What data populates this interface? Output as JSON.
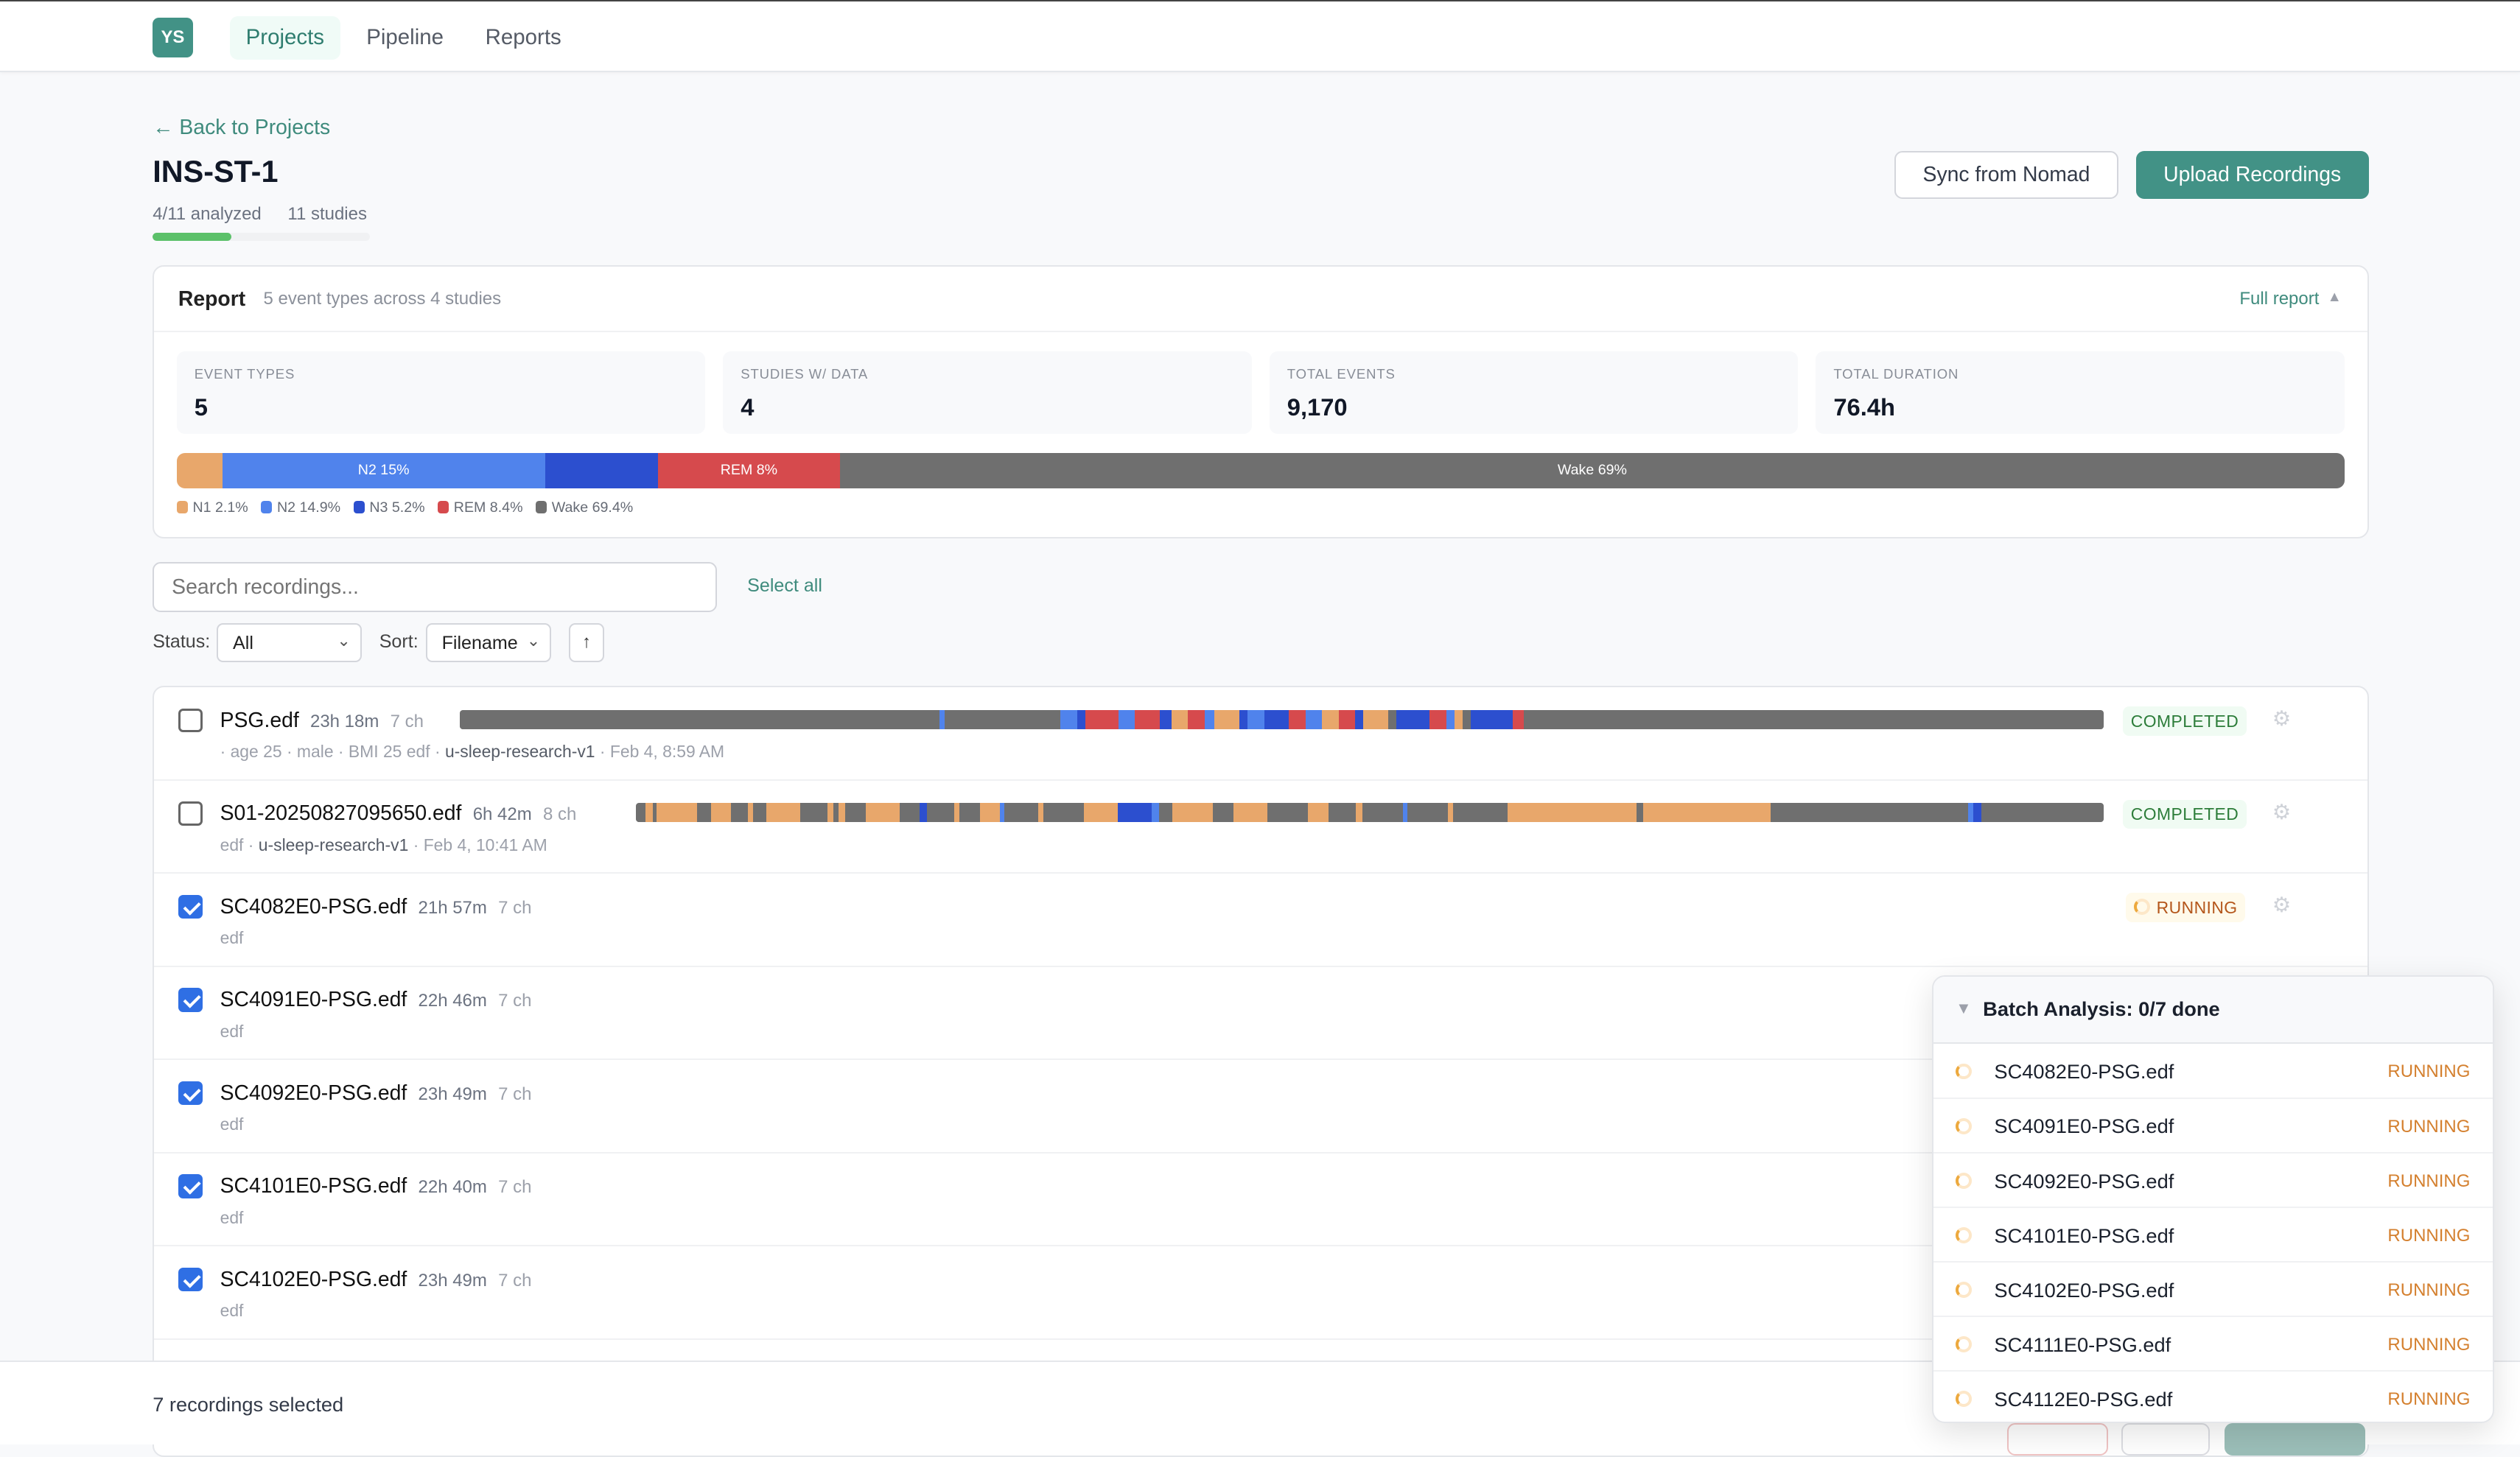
{
  "nav": {
    "logo": "YS",
    "items": [
      {
        "label": "Projects",
        "active": true
      },
      {
        "label": "Pipeline"
      },
      {
        "label": "Reports"
      }
    ]
  },
  "header": {
    "back": "← Back to Projects",
    "title": "INS-ST-1",
    "analyzed": "4/11 analyzed",
    "studies": "11 studies",
    "progress_fraction": 0.364,
    "sync_label": "Sync from Nomad",
    "upload_label": "Upload Recordings"
  },
  "colors": {
    "accent": "#429286",
    "N1": "#e8a76b",
    "N2": "#5083ec",
    "N3": "#2c4fcf",
    "REM": "#d64a4d",
    "Wake": "#6f6f6f"
  },
  "report": {
    "title": "Report",
    "subtitle": "5 event types across 4 studies",
    "full_report": "Full report",
    "stats": [
      {
        "label": "EVENT TYPES",
        "value": "5"
      },
      {
        "label": "STUDIES W/ DATA",
        "value": "4"
      },
      {
        "label": "TOTAL EVENTS",
        "value": "9,170"
      },
      {
        "label": "TOTAL DURATION",
        "value": "76.4h"
      }
    ],
    "stages": [
      {
        "name": "N1",
        "pct": 2.1,
        "bar_label": "",
        "legend": "N1 2.1%"
      },
      {
        "name": "N2",
        "pct": 14.9,
        "bar_label": "N2 15%",
        "legend": "N2 14.9%"
      },
      {
        "name": "N3",
        "pct": 5.2,
        "bar_label": "",
        "legend": "N3 5.2%"
      },
      {
        "name": "REM",
        "pct": 8.4,
        "bar_label": "REM 8%",
        "legend": "REM 8.4%"
      },
      {
        "name": "Wake",
        "pct": 69.4,
        "bar_label": "Wake 69%",
        "legend": "Wake 69.4%"
      }
    ]
  },
  "filters": {
    "search_placeholder": "Search recordings...",
    "select_all": "Select all",
    "status_label": "Status:",
    "status_value": "All",
    "sort_label": "Sort:",
    "sort_value": "Filename",
    "sort_dir": "↑"
  },
  "recordings": [
    {
      "name": "PSG.edf",
      "duration": "23h 18m",
      "channels": "7 ch",
      "checked": false,
      "status": "COMPLETED",
      "sub": [
        [
          "· age 25 · male · BMI 25  edf ·",
          false
        ],
        [
          "u-sleep-research-v1",
          true
        ],
        [
          "· Feb 4, 8:59 AM",
          false
        ]
      ],
      "hypnogram": [
        [
          "Wake",
          29
        ],
        [
          "N2",
          0.3
        ],
        [
          "Wake",
          7
        ],
        [
          "N2",
          1
        ],
        [
          "N3",
          0.5
        ],
        [
          "REM",
          2
        ],
        [
          "N2",
          1
        ],
        [
          "REM",
          1.5
        ],
        [
          "N3",
          0.7
        ],
        [
          "N1",
          1
        ],
        [
          "REM",
          1
        ],
        [
          "N2",
          0.6
        ],
        [
          "N1",
          1.5
        ],
        [
          "N3",
          0.5
        ],
        [
          "N2",
          1
        ],
        [
          "N3",
          1.5
        ],
        [
          "REM",
          1
        ],
        [
          "N2",
          1
        ],
        [
          "N1",
          1
        ],
        [
          "REM",
          1
        ],
        [
          "N3",
          0.5
        ],
        [
          "N1",
          1.5
        ],
        [
          "Wake",
          0.5
        ],
        [
          "N3",
          2
        ],
        [
          "REM",
          1
        ],
        [
          "N2",
          0.5
        ],
        [
          "N1",
          0.5
        ],
        [
          "Wake",
          0.5
        ],
        [
          "N3",
          2.5
        ],
        [
          "REM",
          0.7
        ],
        [
          "Wake",
          35
        ]
      ]
    },
    {
      "name": "S01-20250827095650.edf",
      "duration": "6h 42m",
      "channels": "8 ch",
      "checked": false,
      "status": "COMPLETED",
      "sub": [
        [
          "edf ·",
          false
        ],
        [
          "u-sleep-research-v1",
          true
        ],
        [
          "· Feb 4, 10:41 AM",
          false
        ]
      ],
      "hypnogram": [
        [
          "Wake",
          0.7
        ],
        [
          "N1",
          0.5
        ],
        [
          "Wake",
          0.3
        ],
        [
          "N1",
          3
        ],
        [
          "Wake",
          1
        ],
        [
          "N1",
          1.5
        ],
        [
          "Wake",
          1.2
        ],
        [
          "N1",
          0.4
        ],
        [
          "Wake",
          1
        ],
        [
          "N1",
          2.5
        ],
        [
          "Wake",
          2
        ],
        [
          "N1",
          0.4
        ],
        [
          "Wake",
          0.4
        ],
        [
          "N1",
          0.5
        ],
        [
          "Wake",
          1.5
        ],
        [
          "N1",
          2.5
        ],
        [
          "Wake",
          1.5
        ],
        [
          "N3",
          0.5
        ],
        [
          "Wake",
          2
        ],
        [
          "N1",
          0.4
        ],
        [
          "Wake",
          1.5
        ],
        [
          "N1",
          1.5
        ],
        [
          "N2",
          0.3
        ],
        [
          "Wake",
          2.5
        ],
        [
          "N1",
          0.4
        ],
        [
          "Wake",
          3
        ],
        [
          "N1",
          2.5
        ],
        [
          "N3",
          2.5
        ],
        [
          "N2",
          0.5
        ],
        [
          "Wake",
          1
        ],
        [
          "N1",
          3
        ],
        [
          "Wake",
          1.5
        ],
        [
          "N1",
          2.5
        ],
        [
          "Wake",
          3
        ],
        [
          "N1",
          1.5
        ],
        [
          "Wake",
          2
        ],
        [
          "N1",
          0.5
        ],
        [
          "Wake",
          3
        ],
        [
          "N2",
          0.3
        ],
        [
          "Wake",
          3
        ],
        [
          "N1",
          0.4
        ],
        [
          "Wake",
          4
        ],
        [
          "N1",
          9.5
        ],
        [
          "Wake",
          0.5
        ],
        [
          "N1",
          0.4
        ],
        [
          "N1",
          9
        ],
        [
          "Wake",
          0.5
        ],
        [
          "Wake",
          9
        ],
        [
          "Wake",
          5
        ],
        [
          "N2",
          0.4
        ],
        [
          "N3",
          0.6
        ],
        [
          "Wake",
          9
        ]
      ]
    },
    {
      "name": "SC4082E0-PSG.edf",
      "duration": "21h 57m",
      "channels": "7 ch",
      "checked": true,
      "status": "RUNNING",
      "sub": [
        [
          "edf",
          false
        ]
      ]
    },
    {
      "name": "SC4091E0-PSG.edf",
      "duration": "22h 46m",
      "channels": "7 ch",
      "checked": true,
      "sub": [
        [
          "edf",
          false
        ]
      ]
    },
    {
      "name": "SC4092E0-PSG.edf",
      "duration": "23h 49m",
      "channels": "7 ch",
      "checked": true,
      "sub": [
        [
          "edf",
          false
        ]
      ]
    },
    {
      "name": "SC4101E0-PSG.edf",
      "duration": "22h 40m",
      "channels": "7 ch",
      "checked": true,
      "sub": [
        [
          "edf",
          false
        ]
      ]
    },
    {
      "name": "SC4102E0-PSG.edf",
      "duration": "23h 49m",
      "channels": "7 ch",
      "checked": true,
      "sub": [
        [
          "edf",
          false
        ]
      ]
    },
    {
      "name": "",
      "duration": "",
      "channels": "",
      "checked": true,
      "sub": []
    }
  ],
  "footer": {
    "selected": "7 recordings selected"
  },
  "batch": {
    "title": "Batch Analysis: 0/7 done",
    "items": [
      {
        "name": "SC4082E0-PSG.edf",
        "status": "RUNNING"
      },
      {
        "name": "SC4091E0-PSG.edf",
        "status": "RUNNING"
      },
      {
        "name": "SC4092E0-PSG.edf",
        "status": "RUNNING"
      },
      {
        "name": "SC4101E0-PSG.edf",
        "status": "RUNNING"
      },
      {
        "name": "SC4102E0-PSG.edf",
        "status": "RUNNING"
      },
      {
        "name": "SC4111E0-PSG.edf",
        "status": "RUNNING"
      },
      {
        "name": "SC4112E0-PSG.edf",
        "status": "RUNNING"
      }
    ]
  }
}
